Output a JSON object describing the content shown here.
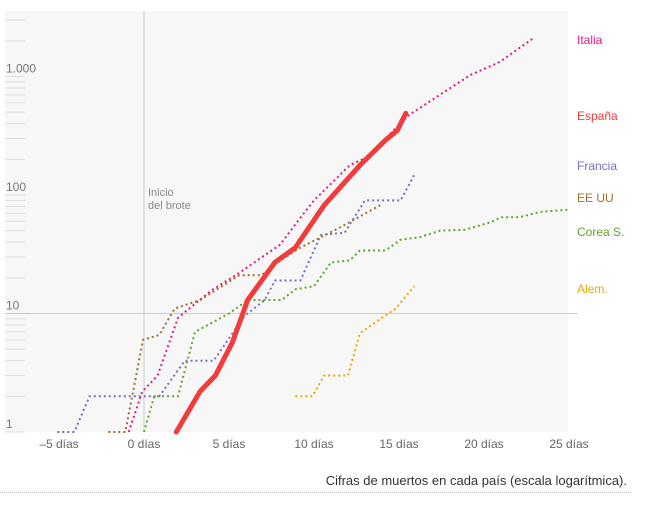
{
  "chart_data": {
    "type": "line",
    "title": "",
    "caption": "Cifras de muertos en cada país (escala logarítmica).",
    "xlabel": "",
    "ylabel": "",
    "yscale": "log",
    "xlim": [
      -8.5,
      25
    ],
    "ylim": [
      1,
      3000
    ],
    "x_ticks": [
      {
        "v": -5,
        "label": "–5 días"
      },
      {
        "v": 0,
        "label": "0 días"
      },
      {
        "v": 5,
        "label": "5 días"
      },
      {
        "v": 10,
        "label": "10 días"
      },
      {
        "v": 15,
        "label": "15 días"
      },
      {
        "v": 20,
        "label": "20 días"
      },
      {
        "v": 25,
        "label": "25 días"
      }
    ],
    "y_ticks": [
      {
        "v": 1,
        "label": "1"
      },
      {
        "v": 10,
        "label": "10"
      },
      {
        "v": 100,
        "label": "100"
      },
      {
        "v": 1000,
        "label": "1.000"
      }
    ],
    "annotation": {
      "x": 0,
      "text_line1": "Inicio",
      "text_line2": "del brote"
    },
    "series": [
      {
        "name": "Italia",
        "color": "#e8197d",
        "style": "dotted",
        "points": [
          [
            -0.9,
            1
          ],
          [
            -0.1,
            2.2
          ],
          [
            0.8,
            3
          ],
          [
            2,
            9.2
          ],
          [
            4,
            15.8
          ],
          [
            5.6,
            22
          ],
          [
            6.8,
            29
          ],
          [
            8,
            38
          ],
          [
            9,
            59
          ],
          [
            10,
            90
          ],
          [
            12.1,
            178
          ],
          [
            13.4,
            218
          ],
          [
            14.4,
            320
          ],
          [
            15.6,
            475
          ],
          [
            17.4,
            700
          ],
          [
            19.2,
            1030
          ],
          [
            20.9,
            1320
          ],
          [
            22.9,
            2100
          ]
        ]
      },
      {
        "name": "España",
        "color": "#f23c3c",
        "style": "solid",
        "points": [
          [
            1.9,
            1
          ],
          [
            3.3,
            2.2
          ],
          [
            4.2,
            3
          ],
          [
            5.2,
            5.7
          ],
          [
            6.1,
            13
          ],
          [
            7.7,
            27
          ],
          [
            8.9,
            36
          ],
          [
            10.6,
            82
          ],
          [
            12.7,
            178
          ],
          [
            14.2,
            290
          ],
          [
            14.9,
            350
          ],
          [
            15.4,
            490
          ]
        ]
      },
      {
        "name": "Francia",
        "color": "#7b6bbd",
        "style": "dotted",
        "points": [
          [
            -5.1,
            1
          ],
          [
            -4.1,
            1
          ],
          [
            -3.2,
            2
          ],
          [
            0.9,
            2
          ],
          [
            2.4,
            4
          ],
          [
            4.1,
            4
          ],
          [
            5.9,
            9.5
          ],
          [
            7.1,
            13
          ],
          [
            7.7,
            19
          ],
          [
            9.2,
            19
          ],
          [
            10.4,
            46
          ],
          [
            11.8,
            48
          ],
          [
            13,
            90
          ],
          [
            15.1,
            90
          ],
          [
            15.9,
            148
          ]
        ]
      },
      {
        "name": "EE UU",
        "color": "#a0702a",
        "style": "dotted",
        "points": [
          [
            -2.1,
            1
          ],
          [
            -1.1,
            1
          ],
          [
            -0.06,
            6
          ],
          [
            0.9,
            6.6
          ],
          [
            1.8,
            11
          ],
          [
            3.3,
            13
          ],
          [
            5.6,
            21
          ],
          [
            6.9,
            21
          ],
          [
            8,
            28
          ],
          [
            9.2,
            36
          ],
          [
            11.5,
            53
          ],
          [
            13.9,
            82
          ]
        ]
      },
      {
        "name": "Corea S.",
        "color": "#5ea62a",
        "style": "dotted",
        "points": [
          [
            0,
            1
          ],
          [
            0.6,
            2
          ],
          [
            2,
            2
          ],
          [
            3,
            7
          ],
          [
            5,
            10
          ],
          [
            6.1,
            13
          ],
          [
            8.1,
            13
          ],
          [
            8.9,
            16
          ],
          [
            10,
            17
          ],
          [
            11,
            27
          ],
          [
            12.1,
            28
          ],
          [
            12.7,
            34
          ],
          [
            14.2,
            34
          ],
          [
            15.1,
            42
          ],
          [
            16.2,
            44
          ],
          [
            17.4,
            50
          ],
          [
            18.9,
            51
          ],
          [
            20.4,
            59
          ],
          [
            21,
            65
          ],
          [
            22.1,
            65
          ],
          [
            23.3,
            72
          ],
          [
            24.9,
            75
          ]
        ]
      },
      {
        "name": "Alem.",
        "color": "#e6a800",
        "style": "dotted",
        "points": [
          [
            8.9,
            2
          ],
          [
            9.9,
            2
          ],
          [
            10.6,
            3
          ],
          [
            12,
            3
          ],
          [
            12.7,
            6.8
          ],
          [
            13.6,
            8.4
          ],
          [
            14.8,
            11
          ],
          [
            15.9,
            17
          ]
        ]
      }
    ]
  }
}
